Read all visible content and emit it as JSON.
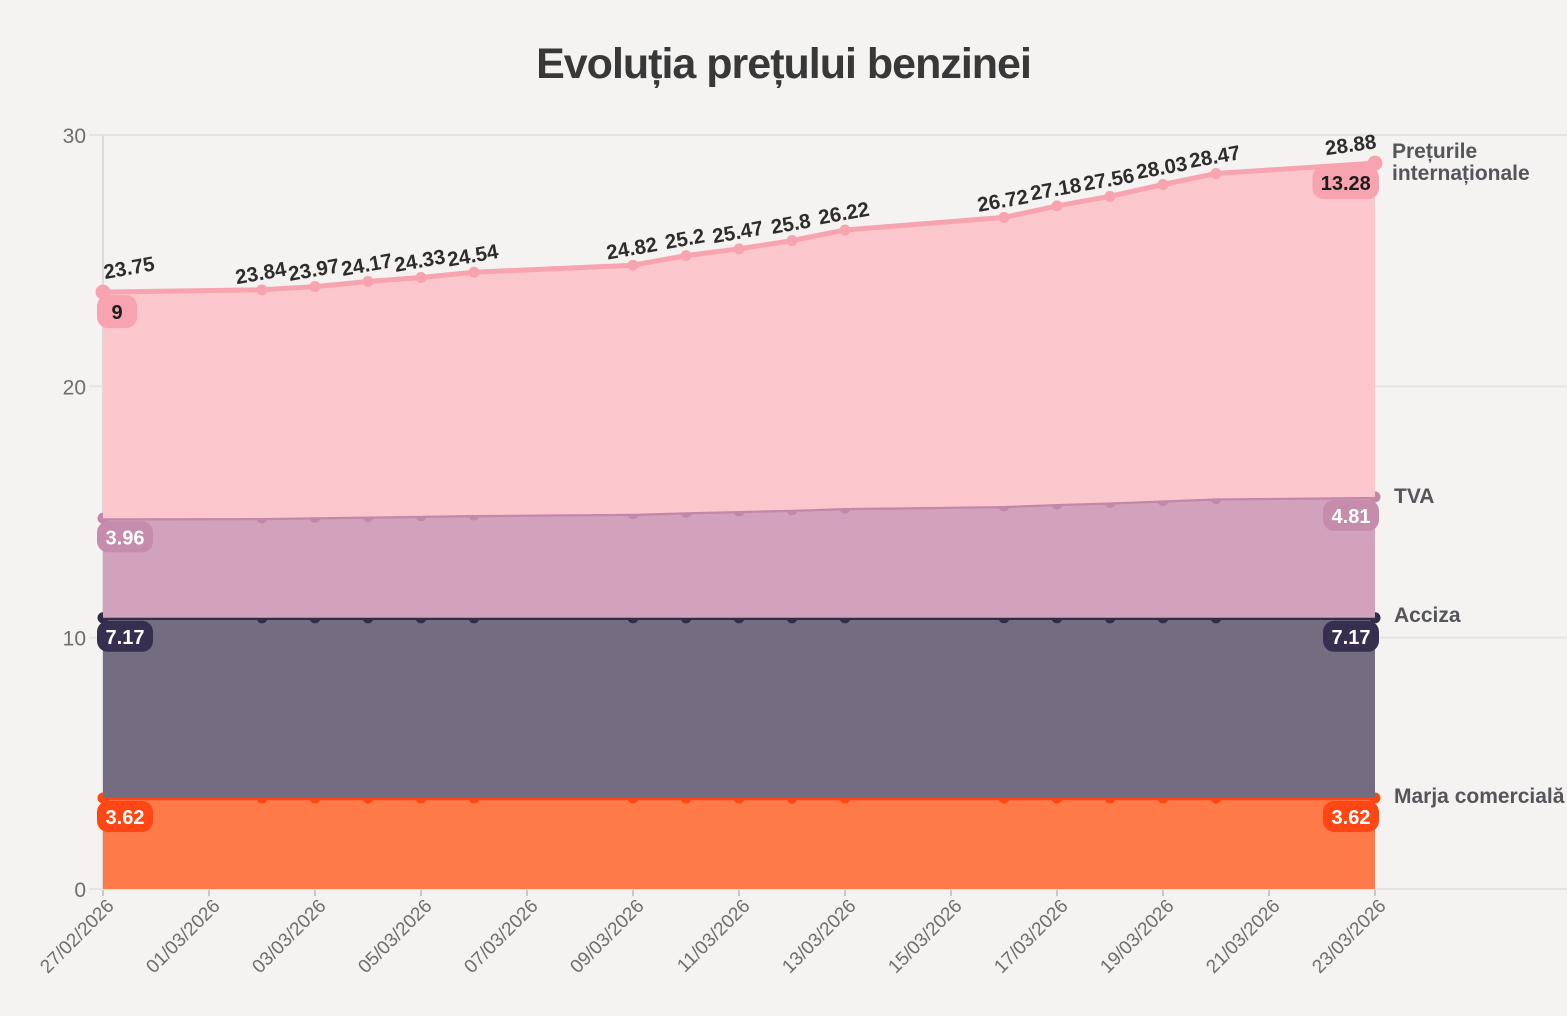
{
  "chart_data": {
    "type": "area",
    "stacked": true,
    "title": "Evoluția prețului benzinei",
    "ylim": [
      0,
      30
    ],
    "yticks": [
      0,
      10,
      20,
      30
    ],
    "grid": true,
    "legend_position": "right",
    "x_span_days": 24,
    "tick_days": [
      0,
      2,
      4,
      6,
      8,
      10,
      12,
      14,
      16,
      18,
      20,
      22,
      24
    ],
    "tick_labels": [
      "27/02/2026",
      "01/03/2026",
      "03/03/2026",
      "05/03/2026",
      "07/03/2026",
      "09/03/2026",
      "11/03/2026",
      "13/03/2026",
      "15/03/2026",
      "17/03/2026",
      "19/03/2026",
      "21/03/2026",
      "23/03/2026"
    ],
    "point_days": [
      0,
      3,
      4,
      5,
      6,
      7,
      10,
      11,
      12,
      13,
      14,
      17,
      18,
      19,
      20,
      21,
      24
    ],
    "totals": [
      23.75,
      23.84,
      23.97,
      24.17,
      24.33,
      24.54,
      24.82,
      25.2,
      25.47,
      25.8,
      26.22,
      26.72,
      27.18,
      27.56,
      28.03,
      28.47,
      28.88
    ],
    "totals_labels": [
      "23.75",
      "23.84",
      "23.97",
      "24.17",
      "24.33",
      "24.54",
      "24.82",
      "25.2",
      "25.47",
      "25.8",
      "26.22",
      "26.72",
      "27.18",
      "27.56",
      "28.03",
      "28.47",
      "28.88"
    ],
    "series": [
      {
        "name": "Marja comercială",
        "values": [
          3.62,
          3.62,
          3.62,
          3.62,
          3.62,
          3.62,
          3.62,
          3.62,
          3.62,
          3.62,
          3.62,
          3.62,
          3.62,
          3.62,
          3.62,
          3.62,
          3.62
        ],
        "area_color": "#ff7a49",
        "line_color": "#ff4715",
        "badge_bg": "#ff4715",
        "badge_fg": "#ffffff",
        "badge_first": "3.62",
        "badge_last": "3.62"
      },
      {
        "name": "Acciza",
        "values": [
          7.17,
          7.17,
          7.17,
          7.17,
          7.17,
          7.17,
          7.17,
          7.17,
          7.17,
          7.17,
          7.17,
          7.17,
          7.17,
          7.17,
          7.17,
          7.17,
          7.17
        ],
        "area_color": "#746c80",
        "line_color": "#332c49",
        "badge_bg": "#372f4f",
        "badge_fg": "#ffffff",
        "badge_first": "7.17",
        "badge_last": "7.17"
      },
      {
        "name": "TVA",
        "values": [
          3.96,
          3.97,
          4.0,
          4.03,
          4.06,
          4.09,
          4.14,
          4.2,
          4.25,
          4.3,
          4.37,
          4.45,
          4.53,
          4.59,
          4.67,
          4.75,
          4.81
        ],
        "area_color": "#d2a2bc",
        "line_color": "#c287a9",
        "badge_bg": "#c68cab",
        "badge_fg": "#ffffff",
        "badge_first": "3.96",
        "badge_last": "4.81"
      },
      {
        "name": "Prețurile internaționale",
        "values": [
          9.0,
          9.08,
          9.18,
          9.35,
          9.48,
          9.66,
          9.89,
          10.21,
          10.43,
          10.71,
          11.06,
          11.48,
          11.86,
          12.18,
          12.57,
          12.93,
          13.28
        ],
        "area_color": "#fcc7cc",
        "line_color": "#f8a3b0",
        "badge_bg": "#f8a3b0",
        "badge_fg": "#1c1c1c",
        "badge_first": "9",
        "badge_last": "13.28"
      }
    ],
    "colors": {
      "background": "#f4f3f1",
      "grid": "#e5e4e2",
      "axis": "#dddcda",
      "tick_mark": "#c9c8c6",
      "tick_label": "#6e6e6e",
      "data_label": "#2d2d2d",
      "legend_label": "#55555a",
      "title": "#383838"
    }
  }
}
